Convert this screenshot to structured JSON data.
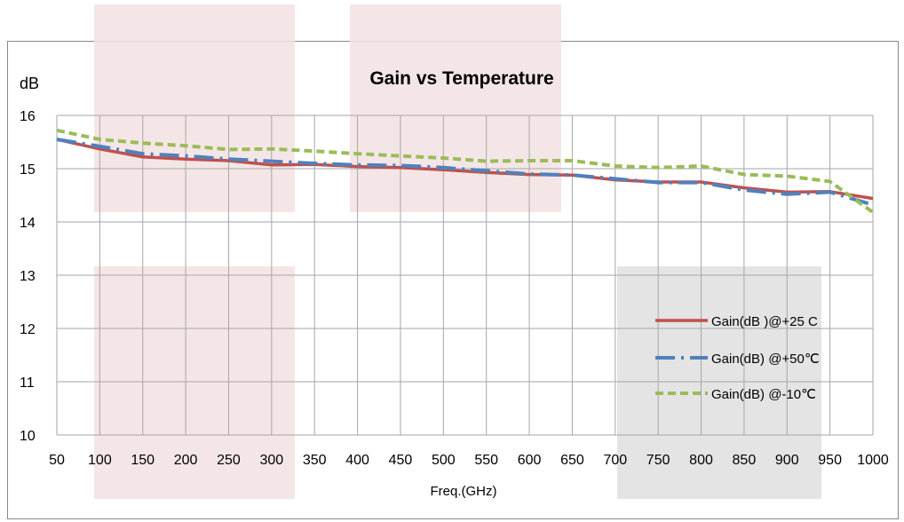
{
  "chart_data": {
    "type": "line",
    "title": "Gain vs Temperature",
    "xlabel": "Freq.(GHz)",
    "ylabel": "dB",
    "x": [
      50,
      100,
      150,
      200,
      250,
      300,
      350,
      400,
      450,
      500,
      550,
      600,
      650,
      700,
      750,
      800,
      850,
      900,
      950,
      1000
    ],
    "xlim": [
      50,
      1000
    ],
    "ylim": [
      10,
      16
    ],
    "x_ticks": [
      "50",
      "100",
      "150",
      "200",
      "250",
      "300",
      "350",
      "400",
      "450",
      "500",
      "550",
      "600",
      "650",
      "700",
      "750",
      "800",
      "850",
      "900",
      "950",
      "1000"
    ],
    "y_ticks": [
      "10",
      "11",
      "12",
      "13",
      "14",
      "15",
      "16"
    ],
    "grid": true,
    "legend_position": "right",
    "series": [
      {
        "name": "Gain(dB )@+25 C",
        "color": "#c0504d",
        "style": "solid",
        "values": [
          15.55,
          15.37,
          15.22,
          15.18,
          15.15,
          15.07,
          15.08,
          15.04,
          15.02,
          14.98,
          14.93,
          14.89,
          14.88,
          14.79,
          14.75,
          14.75,
          14.64,
          14.56,
          14.57,
          14.44
        ]
      },
      {
        "name": "Gain(dB) @+50℃",
        "color": "#4f81bd",
        "style": "dash-dot",
        "values": [
          15.55,
          15.42,
          15.28,
          15.24,
          15.18,
          15.14,
          15.1,
          15.07,
          15.06,
          15.02,
          14.96,
          14.9,
          14.88,
          14.81,
          14.74,
          14.74,
          14.6,
          14.52,
          14.56,
          14.32
        ]
      },
      {
        "name": "Gain(dB) @-10℃",
        "color": "#9bbb59",
        "style": "dashed",
        "values": [
          15.72,
          15.55,
          15.48,
          15.43,
          15.36,
          15.37,
          15.33,
          15.28,
          15.24,
          15.2,
          15.14,
          15.15,
          15.15,
          15.05,
          15.02,
          15.05,
          14.89,
          14.86,
          14.76,
          14.18
        ]
      }
    ]
  }
}
